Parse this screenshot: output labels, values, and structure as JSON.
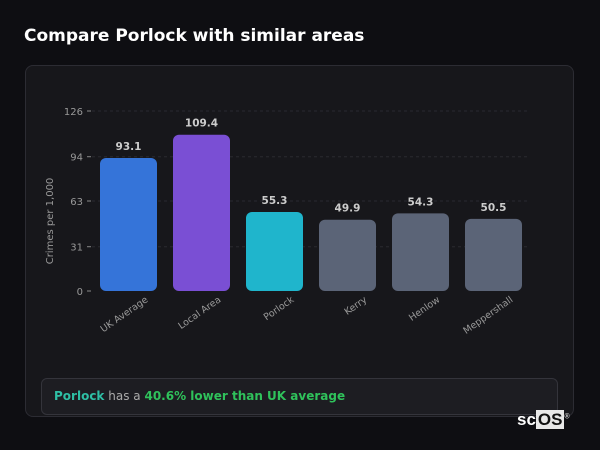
{
  "title": "Compare Porlock with similar areas",
  "chart_data": {
    "type": "bar",
    "title": "",
    "xlabel": "",
    "ylabel": "Crimes per 1,000",
    "ylim": [
      0,
      126
    ],
    "yticks": [
      0,
      31,
      63,
      94,
      126
    ],
    "grid": true,
    "categories": [
      "UK Average",
      "Local Area",
      "Porlock",
      "Kerry",
      "Henlow",
      "Meppershall"
    ],
    "values": [
      93.1,
      109.4,
      55.3,
      49.9,
      54.3,
      50.5
    ],
    "colors": [
      "#3574d9",
      "#7a4fd4",
      "#1fb5cc",
      "#5b6477",
      "#5b6477",
      "#5b6477"
    ]
  },
  "summary": {
    "place": "Porlock",
    "middle": "has a",
    "highlight": "40.6% lower than UK average"
  },
  "logo": {
    "text_a": "sc",
    "text_b": "OS",
    "mark": "®"
  }
}
